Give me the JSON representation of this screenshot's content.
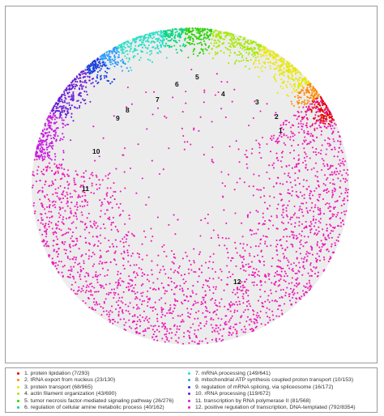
{
  "chart_data": {
    "type": "scatter",
    "title": "",
    "xlabel": "",
    "ylabel": "",
    "grid": false,
    "legend_position": "bottom",
    "background_disk_color": "#ececec",
    "clusters": [
      {
        "id": "1",
        "name": "1. protein lipidation (7/293)",
        "color": "#e60000",
        "size": 293,
        "angle_start": 55,
        "angle_end": 66
      },
      {
        "id": "2",
        "name": "2. tRNA export from nucleus (23/130)",
        "color": "#ff8a00",
        "size": 130,
        "angle_start": 49,
        "angle_end": 55
      },
      {
        "id": "3",
        "name": "3. protein transport (68/965)",
        "color": "#e8e800",
        "size": 965,
        "angle_start": 27,
        "angle_end": 49
      },
      {
        "id": "4",
        "name": "4. actin filament organization (43/690)",
        "color": "#a6ea00",
        "size": 690,
        "angle_start": 8,
        "angle_end": 27
      },
      {
        "id": "5",
        "name": "5. tumor necrosis factor-mediated signaling pathway (26/276)",
        "color": "#28d400",
        "size": 276,
        "angle_start": -2,
        "angle_end": 8
      },
      {
        "id": "6",
        "name": "6. regulation of cellular amine metabolic process (40/162)",
        "color": "#00d880",
        "size": 162,
        "angle_start": -10,
        "angle_end": -2
      },
      {
        "id": "7",
        "name": "7. mRNA processing (149/641)",
        "color": "#28e0c8",
        "size": 641,
        "angle_start": -28,
        "angle_end": -10
      },
      {
        "id": "8",
        "name": "8. mitochondrial ATP synthesis coupled proton transport (10/153)",
        "color": "#2a9cff",
        "size": 153,
        "angle_start": -35,
        "angle_end": -28
      },
      {
        "id": "9",
        "name": "9. regulation of mRNA splicing, via spliceosome (16/172)",
        "color": "#1a3fe0",
        "size": 172,
        "angle_start": -42,
        "angle_end": -35
      },
      {
        "id": "10",
        "name": "10. rRNA processing (119/672)",
        "color": "#6a1ad6",
        "size": 672,
        "angle_start": -62,
        "angle_end": -42
      },
      {
        "id": "11",
        "name": "11. transcription by RNA polymerase II (81/568)",
        "color": "#c81ae0",
        "size": 568,
        "angle_start": -80,
        "angle_end": -62
      },
      {
        "id": "12",
        "name": "12. positive regulation of transcription, DNA-templated (792/8354)",
        "color": "#ee18b8",
        "size": 8354,
        "angle_start": -80,
        "angle_end": 55
      }
    ]
  }
}
